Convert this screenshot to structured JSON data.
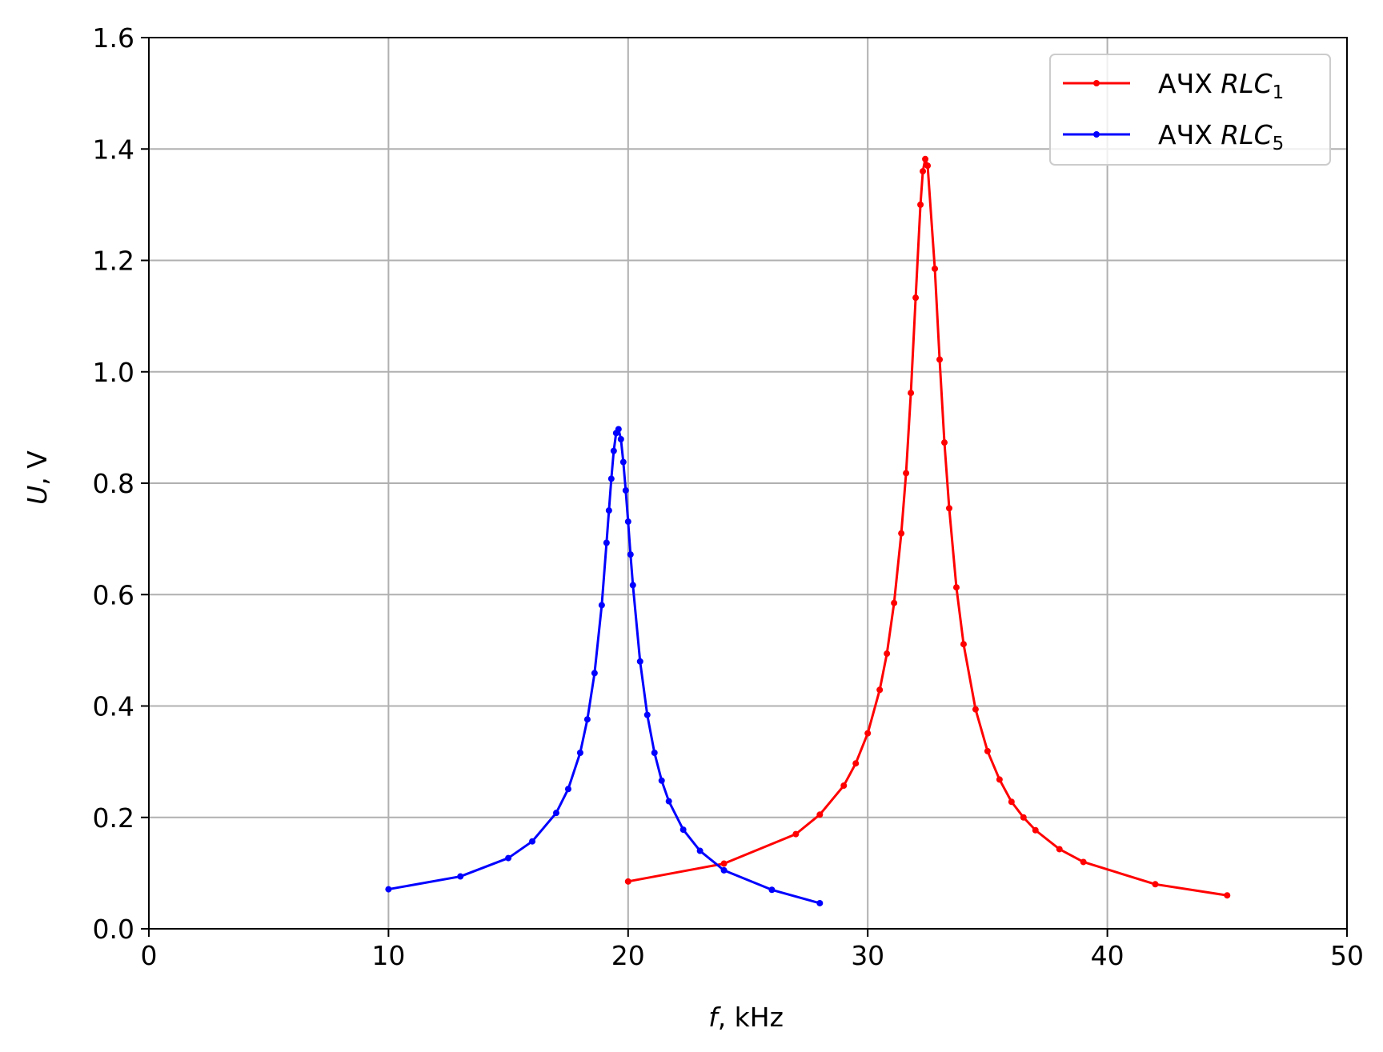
{
  "chart_data": {
    "type": "line",
    "title": "",
    "xlabel": {
      "var": "f",
      "sep": ", ",
      "unit": "kHz"
    },
    "ylabel": {
      "var": "U",
      "sep": ", ",
      "unit": "V"
    },
    "xlim": [
      0,
      50
    ],
    "ylim": [
      0,
      1.6
    ],
    "xticks": [
      0,
      10,
      20,
      30,
      40,
      50
    ],
    "xtick_labels": [
      "0",
      "10",
      "20",
      "30",
      "40",
      "50"
    ],
    "yticks": [
      0,
      0.2,
      0.4,
      0.6,
      0.8,
      1.0,
      1.2,
      1.4,
      1.6
    ],
    "ytick_labels": [
      "0.0",
      "0.2",
      "0.4",
      "0.6",
      "0.8",
      "1.0",
      "1.2",
      "1.4",
      "1.6"
    ],
    "grid": true,
    "legend_position": "top-right",
    "series": [
      {
        "name_prefix": "АЧХ ",
        "name_main": "RLC",
        "name_sub": "1",
        "color": "#ff0000",
        "x": [
          20,
          24,
          27,
          28,
          29,
          29.5,
          30,
          30.5,
          30.8,
          31.1,
          31.4,
          31.6,
          31.8,
          32,
          32.2,
          32.3,
          32.4,
          32.5,
          32.8,
          33,
          33.2,
          33.4,
          33.7,
          34,
          34.5,
          35,
          35.5,
          36,
          36.5,
          37,
          38,
          39,
          42,
          45
        ],
        "y": [
          0.085,
          0.117,
          0.17,
          0.205,
          0.257,
          0.297,
          0.351,
          0.429,
          0.494,
          0.585,
          0.71,
          0.818,
          0.962,
          1.133,
          1.3,
          1.36,
          1.382,
          1.37,
          1.185,
          1.022,
          0.873,
          0.755,
          0.613,
          0.511,
          0.394,
          0.319,
          0.268,
          0.228,
          0.2,
          0.177,
          0.143,
          0.12,
          0.08,
          0.06
        ]
      },
      {
        "name_prefix": "АЧХ ",
        "name_main": "RLC",
        "name_sub": "5",
        "color": "#0000ff",
        "x": [
          10,
          13,
          15,
          16,
          17,
          17.5,
          18,
          18.3,
          18.6,
          18.9,
          19.1,
          19.2,
          19.3,
          19.4,
          19.5,
          19.6,
          19.7,
          19.8,
          19.9,
          20,
          20.1,
          20.2,
          20.5,
          20.8,
          21.1,
          21.4,
          21.7,
          22.3,
          23,
          24,
          26,
          28
        ],
        "y": [
          0.071,
          0.094,
          0.127,
          0.157,
          0.208,
          0.251,
          0.316,
          0.376,
          0.459,
          0.581,
          0.693,
          0.751,
          0.808,
          0.858,
          0.89,
          0.897,
          0.879,
          0.838,
          0.787,
          0.731,
          0.672,
          0.617,
          0.48,
          0.384,
          0.316,
          0.266,
          0.229,
          0.178,
          0.14,
          0.105,
          0.07,
          0.046
        ]
      }
    ]
  }
}
